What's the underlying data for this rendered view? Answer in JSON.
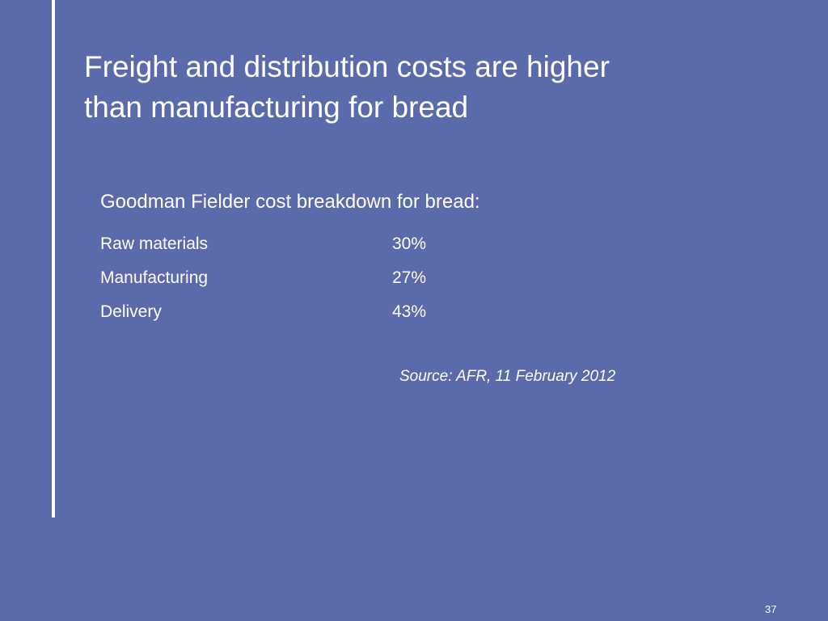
{
  "title": {
    "lines": [
      "Freight and distribution costs are higher",
      "than manufacturing for bread"
    ]
  },
  "subtitle": "Goodman Fielder cost breakdown for bread:",
  "table": {
    "rows": [
      [
        "Raw materials",
        "30%"
      ],
      [
        "Manufacturing",
        "27%"
      ],
      [
        "Delivery",
        "43%"
      ]
    ]
  },
  "source": "Source: AFR, 11 February 2012",
  "page_number": "37"
}
